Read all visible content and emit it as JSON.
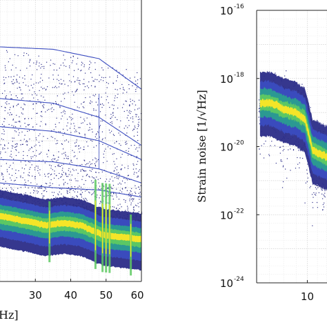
{
  "chart_data": [
    {
      "type": "heatmap",
      "panel": "left",
      "x_tick_labels": [
        "30",
        "40",
        "50",
        "60"
      ],
      "x_ticks": [
        30,
        40,
        50,
        60
      ],
      "xlim": [
        20,
        60
      ],
      "xlabel_fragment": "Hz]",
      "grid": true,
      "colormap": [
        "#2b2c88",
        "#3b4cc0",
        "#2a9d8f",
        "#5ec962",
        "#fde725"
      ],
      "density_band": {
        "description_units": "relative strain (log10)",
        "center_log10": [
          -21.6,
          -21.7,
          -21.8,
          -21.75,
          -21.8,
          -22.0,
          -22.1
        ],
        "x": [
          20,
          27,
          33,
          38,
          43,
          49,
          60
        ]
      },
      "spectral_lines_hz": [
        34,
        47,
        49,
        50,
        51,
        57
      ]
    },
    {
      "type": "heatmap",
      "panel": "right",
      "ylabel": "Strain noise",
      "ylabel_unit": "[1/√Hz]",
      "y_scale": "log",
      "y_tick_base": "10",
      "y_tick_exponents": [
        "-16",
        "-18",
        "-20",
        "-22",
        "-24"
      ],
      "ylim": [
        1e-24,
        1e-16
      ],
      "x_scale": "log",
      "x_tick_labels": [
        "10"
      ],
      "x_ticks": [
        10
      ],
      "grid": true,
      "colormap": [
        "#2b2c88",
        "#3b4cc0",
        "#2a9d8f",
        "#5ec962",
        "#fde725"
      ],
      "density_band": {
        "x": [
          7,
          8,
          9,
          9.8,
          10.5,
          12,
          14
        ],
        "center_log10": [
          -18.7,
          -18.9,
          -19.0,
          -19.2,
          -20.1,
          -20.3,
          -20.5
        ]
      }
    }
  ]
}
